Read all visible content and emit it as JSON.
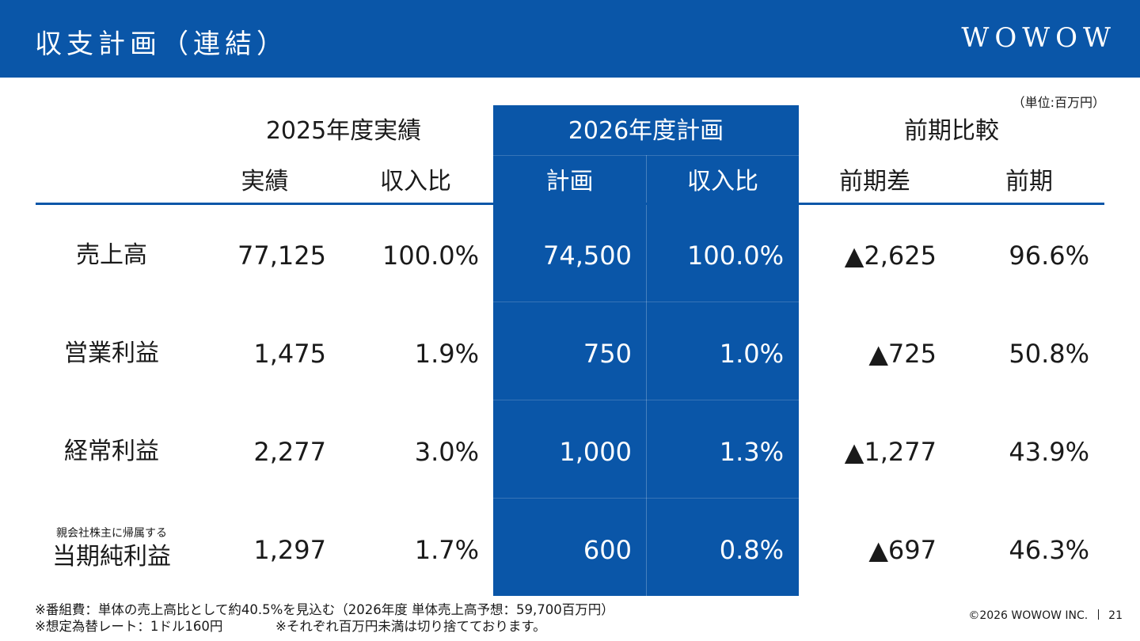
{
  "header": {
    "title": "収支計画（連結）",
    "logo": "WOWOW",
    "bg_color": "#0a56a8"
  },
  "unit_note": "（単位:百万円）",
  "table": {
    "groups": [
      "2025年度実績",
      "2026年度計画",
      "前期比較"
    ],
    "columns": [
      "実績",
      "収入比",
      "計画",
      "収入比",
      "前期差",
      "前期"
    ],
    "rows": [
      {
        "label_small": "",
        "label": "売上高",
        "cells": [
          "77,125",
          "100.0%",
          "74,500",
          "100.0%",
          "▲2,625",
          "96.6%"
        ]
      },
      {
        "label_small": "",
        "label": "営業利益",
        "cells": [
          "1,475",
          "1.9%",
          "750",
          "1.0%",
          "▲725",
          "50.8%"
        ]
      },
      {
        "label_small": "",
        "label": "経常利益",
        "cells": [
          "2,277",
          "3.0%",
          "1,000",
          "1.3%",
          "▲1,277",
          "43.9%"
        ]
      },
      {
        "label_small": "親会社株主に帰属する",
        "label": "当期純利益",
        "cells": [
          "1,297",
          "1.7%",
          "600",
          "0.8%",
          "▲697",
          "46.3%"
        ]
      }
    ]
  },
  "footnotes": {
    "line1": "※番組費：単体の売上高比として約40.5%を見込む（2026年度 単体売上高予想：59,700百万円）",
    "line2a": "※想定為替レート：1ドル160円",
    "line2b": "※それぞれ百万円未満は切り捨てております。"
  },
  "copyright": "©2026 WOWOW INC.",
  "page_number": "21"
}
